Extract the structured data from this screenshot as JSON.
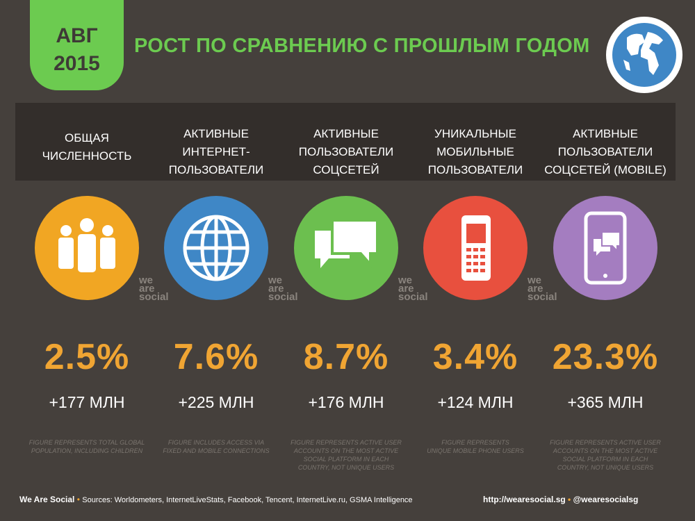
{
  "badge": {
    "month": "АВГ",
    "year": "2015"
  },
  "title": "РОСТ ПО СРАВНЕНИЮ С ПРОШЛЫМ ГОДОМ",
  "watermark": [
    "we",
    "are",
    "social"
  ],
  "colors": {
    "accent": "#6ccb50",
    "value": "#f0a533"
  },
  "columns": [
    {
      "header": [
        "ОБЩАЯ",
        "ЧИСЛЕННОСТЬ"
      ],
      "icon": "people-icon",
      "color": "#f1a623",
      "value": "2.5%",
      "change": "+177 МЛН",
      "note": [
        "FIGURE REPRESENTS TOTAL GLOBAL",
        "POPULATION, INCLUDING CHILDREN"
      ]
    },
    {
      "header": [
        "АКТИВНЫЕ",
        "ИНТЕРНЕТ-",
        "ПОЛЬЗОВАТЕЛИ"
      ],
      "icon": "globe-grid-icon",
      "color": "#3f87c6",
      "value": "7.6%",
      "change": "+225 МЛН",
      "note": [
        "FIGURE INCLUDES ACCESS VIA",
        "FIXED AND MOBILE CONNECTIONS"
      ]
    },
    {
      "header": [
        "АКТИВНЫЕ",
        "ПОЛЬЗОВАТЕЛИ",
        "СОЦСЕТЕЙ"
      ],
      "icon": "chat-bubbles-icon",
      "color": "#6cbf4f",
      "value": "8.7%",
      "change": "+176 МЛН",
      "note": [
        "FIGURE REPRESENTS ACTIVE USER",
        "ACCOUNTS ON THE MOST ACTIVE",
        "SOCIAL PLATFORM IN EACH",
        "COUNTRY, NOT UNIQUE USERS"
      ]
    },
    {
      "header": [
        "УНИКАЛЬНЫЕ",
        "МОБИЛЬНЫЕ",
        "ПОЛЬЗОВАТЕЛИ"
      ],
      "icon": "mobile-phone-icon",
      "color": "#e8503e",
      "value": "3.4%",
      "change": "+124 МЛН",
      "note": [
        "FIGURE REPRESENTS",
        "UNIQUE MOBILE PHONE USERS"
      ]
    },
    {
      "header": [
        "АКТИВНЫЕ",
        "ПОЛЬЗОВАТЕЛИ",
        "СОЦСЕТЕЙ (MOBILE)"
      ],
      "icon": "smartphone-chat-icon",
      "color": "#a47dc0",
      "value": "23.3%",
      "change": "+365 МЛН",
      "note": [
        "FIGURE REPRESENTS ACTIVE USER",
        "ACCOUNTS ON THE MOST ACTIVE",
        "SOCIAL PLATFORM IN EACH",
        "COUNTRY, NOT UNIQUE USERS"
      ]
    }
  ],
  "footer": {
    "brand": "We Are Social",
    "sources": "Sources: Worldometers, InternetLiveStats, Facebook, Tencent, InternetLive.ru, GSMA Intelligence",
    "url": "http://wearesocial.sg",
    "handle": "@wearesocialsg"
  }
}
